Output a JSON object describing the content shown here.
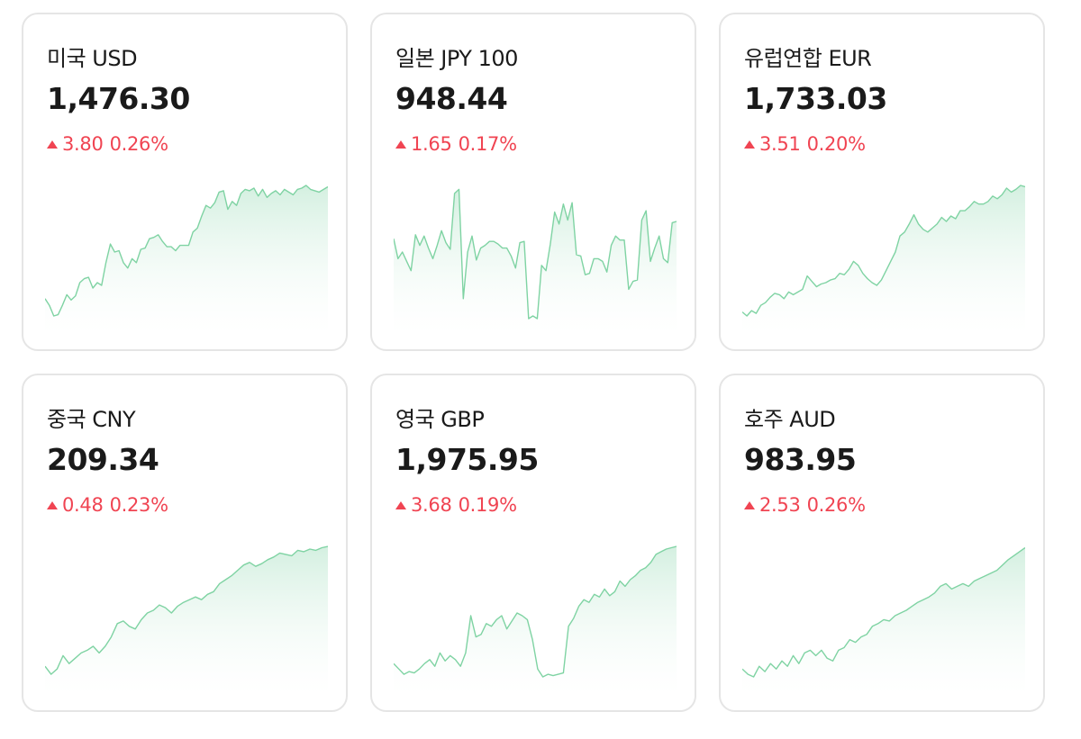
{
  "cards": [
    {
      "name": "미국 USD",
      "rate": "1,476.30",
      "diff": "3.80",
      "pct": "0.26%"
    },
    {
      "name": "일본 JPY 100",
      "rate": "948.44",
      "diff": "1.65",
      "pct": "0.17%"
    },
    {
      "name": "유럽연합 EUR",
      "rate": "1,733.03",
      "diff": "3.51",
      "pct": "0.20%"
    },
    {
      "name": "중국 CNY",
      "rate": "209.34",
      "diff": "0.48",
      "pct": "0.23%"
    },
    {
      "name": "영국 GBP",
      "rate": "1,975.95",
      "diff": "3.68",
      "pct": "0.19%"
    },
    {
      "name": "호주 AUD",
      "rate": "983.95",
      "diff": "2.53",
      "pct": "0.26%"
    }
  ],
  "colors": {
    "up": "#f04452",
    "line": "#7fd3a3",
    "fill_top": "#cfeedd",
    "border": "#e5e5e5"
  },
  "icons": {
    "change_direction": "triangle-up-icon"
  },
  "chart_data": [
    {
      "type": "area",
      "series": [
        {
          "values": [
            0.15,
            0.1,
            0.02,
            0.03,
            0.1,
            0.18,
            0.14,
            0.17,
            0.27,
            0.3,
            0.31,
            0.23,
            0.27,
            0.25,
            0.42,
            0.56,
            0.5,
            0.51,
            0.42,
            0.38,
            0.45,
            0.42,
            0.52,
            0.53,
            0.6,
            0.61,
            0.63,
            0.58,
            0.54,
            0.54,
            0.51,
            0.55,
            0.55,
            0.55,
            0.65,
            0.68,
            0.77,
            0.85,
            0.83,
            0.87,
            0.95,
            0.96,
            0.82,
            0.88,
            0.85,
            0.94,
            0.97,
            0.96,
            0.98,
            0.92,
            0.97,
            0.91,
            0.94,
            0.96,
            0.93,
            0.97,
            0.95,
            0.93,
            0.97,
            0.98,
            1.0,
            0.97,
            0.96,
            0.95,
            0.97,
            0.99
          ]
        }
      ]
    },
    {
      "type": "area",
      "series": [
        {
          "values": [
            0.6,
            0.45,
            0.5,
            0.43,
            0.36,
            0.63,
            0.55,
            0.62,
            0.53,
            0.45,
            0.55,
            0.66,
            0.57,
            0.52,
            0.94,
            0.97,
            0.15,
            0.5,
            0.62,
            0.44,
            0.53,
            0.55,
            0.58,
            0.58,
            0.56,
            0.53,
            0.53,
            0.47,
            0.38,
            0.57,
            0.58,
            0.0,
            0.02,
            0.0,
            0.4,
            0.36,
            0.56,
            0.8,
            0.71,
            0.86,
            0.74,
            0.87,
            0.48,
            0.47,
            0.33,
            0.34,
            0.45,
            0.45,
            0.43,
            0.35,
            0.55,
            0.62,
            0.59,
            0.59,
            0.22,
            0.28,
            0.29,
            0.74,
            0.81,
            0.43,
            0.53,
            0.62,
            0.45,
            0.42,
            0.72,
            0.73
          ]
        }
      ]
    },
    {
      "type": "area",
      "series": [
        {
          "values": [
            0.05,
            0.02,
            0.06,
            0.04,
            0.1,
            0.12,
            0.16,
            0.19,
            0.18,
            0.15,
            0.2,
            0.18,
            0.2,
            0.22,
            0.32,
            0.28,
            0.24,
            0.26,
            0.27,
            0.29,
            0.3,
            0.34,
            0.33,
            0.37,
            0.43,
            0.4,
            0.34,
            0.3,
            0.27,
            0.25,
            0.29,
            0.36,
            0.43,
            0.5,
            0.62,
            0.65,
            0.71,
            0.78,
            0.71,
            0.67,
            0.65,
            0.68,
            0.71,
            0.76,
            0.73,
            0.77,
            0.75,
            0.81,
            0.81,
            0.84,
            0.88,
            0.86,
            0.86,
            0.88,
            0.92,
            0.9,
            0.93,
            0.98,
            0.95,
            0.97,
            1.0,
            0.99
          ]
        }
      ]
    },
    {
      "type": "area",
      "series": [
        {
          "values": [
            0.1,
            0.04,
            0.08,
            0.18,
            0.12,
            0.16,
            0.2,
            0.22,
            0.25,
            0.2,
            0.25,
            0.32,
            0.42,
            0.44,
            0.4,
            0.38,
            0.45,
            0.5,
            0.52,
            0.56,
            0.54,
            0.5,
            0.55,
            0.58,
            0.6,
            0.62,
            0.6,
            0.64,
            0.66,
            0.72,
            0.75,
            0.78,
            0.82,
            0.86,
            0.88,
            0.85,
            0.87,
            0.9,
            0.92,
            0.95,
            0.94,
            0.93,
            0.97,
            0.96,
            0.98,
            0.97,
            0.99,
            1.0
          ]
        }
      ]
    },
    {
      "type": "area",
      "series": [
        {
          "values": [
            0.12,
            0.08,
            0.04,
            0.06,
            0.05,
            0.08,
            0.12,
            0.15,
            0.1,
            0.2,
            0.14,
            0.18,
            0.15,
            0.1,
            0.2,
            0.48,
            0.32,
            0.34,
            0.42,
            0.4,
            0.45,
            0.48,
            0.38,
            0.44,
            0.5,
            0.48,
            0.45,
            0.3,
            0.08,
            0.02,
            0.04,
            0.03,
            0.04,
            0.05,
            0.4,
            0.46,
            0.55,
            0.6,
            0.58,
            0.64,
            0.62,
            0.68,
            0.63,
            0.66,
            0.74,
            0.7,
            0.75,
            0.78,
            0.82,
            0.84,
            0.88,
            0.94,
            0.96,
            0.98,
            0.99,
            1.0
          ]
        }
      ]
    },
    {
      "type": "area",
      "series": [
        {
          "values": [
            0.08,
            0.04,
            0.02,
            0.1,
            0.06,
            0.12,
            0.08,
            0.14,
            0.1,
            0.18,
            0.12,
            0.2,
            0.22,
            0.18,
            0.22,
            0.16,
            0.14,
            0.22,
            0.24,
            0.3,
            0.28,
            0.32,
            0.34,
            0.4,
            0.42,
            0.45,
            0.44,
            0.48,
            0.5,
            0.52,
            0.55,
            0.58,
            0.6,
            0.62,
            0.65,
            0.7,
            0.72,
            0.68,
            0.7,
            0.72,
            0.7,
            0.74,
            0.76,
            0.78,
            0.8,
            0.82,
            0.86,
            0.9,
            0.93,
            0.96,
            0.99
          ]
        }
      ]
    }
  ]
}
